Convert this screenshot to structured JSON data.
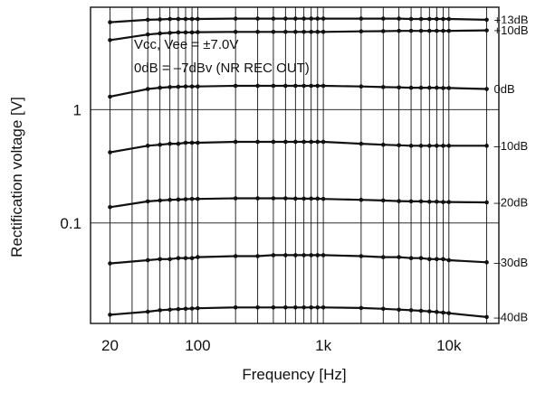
{
  "chart_data": {
    "type": "line",
    "xlabel": "Frequency [Hz]",
    "ylabel": "Rectification voltage [V]",
    "xscale": "log",
    "yscale": "log",
    "xlim": [
      14,
      25000
    ],
    "ylim": [
      0.013,
      8
    ],
    "grid": true,
    "x_ticks": [
      {
        "value": 20,
        "label": "20"
      },
      {
        "value": 100,
        "label": "100"
      },
      {
        "value": 1000,
        "label": "1k"
      },
      {
        "value": 10000,
        "label": "10k"
      }
    ],
    "y_ticks": [
      {
        "value": 1,
        "label": "1"
      },
      {
        "value": 0.1,
        "label": "0.1"
      }
    ],
    "annotations": [
      "Vcc, Vee = ±7.0V",
      "0dB = –7dBv (NR REC OUT)"
    ],
    "x": [
      20,
      40,
      50,
      60,
      70,
      80,
      90,
      100,
      200,
      300,
      400,
      500,
      600,
      700,
      800,
      900,
      1000,
      2000,
      3000,
      4000,
      5000,
      6000,
      7000,
      8000,
      9000,
      10000,
      20000
    ],
    "series": [
      {
        "name": "+13dB",
        "values": [
          5.9,
          6.2,
          6.25,
          6.3,
          6.3,
          6.3,
          6.3,
          6.3,
          6.35,
          6.35,
          6.35,
          6.35,
          6.35,
          6.35,
          6.35,
          6.35,
          6.35,
          6.35,
          6.35,
          6.35,
          6.3,
          6.3,
          6.3,
          6.3,
          6.3,
          6.3,
          6.2
        ]
      },
      {
        "name": "+10dB",
        "values": [
          4.1,
          4.6,
          4.7,
          4.75,
          4.8,
          4.8,
          4.8,
          4.82,
          4.85,
          4.85,
          4.85,
          4.85,
          4.85,
          4.85,
          4.85,
          4.85,
          4.85,
          4.9,
          4.92,
          4.95,
          4.95,
          4.95,
          4.95,
          4.95,
          4.95,
          4.95,
          5.0
        ]
      },
      {
        "name": "0dB",
        "values": [
          1.3,
          1.52,
          1.56,
          1.58,
          1.59,
          1.6,
          1.6,
          1.6,
          1.62,
          1.62,
          1.62,
          1.62,
          1.62,
          1.62,
          1.62,
          1.62,
          1.62,
          1.6,
          1.58,
          1.57,
          1.56,
          1.56,
          1.56,
          1.56,
          1.55,
          1.55,
          1.52
        ]
      },
      {
        "name": "–10dB",
        "values": [
          0.42,
          0.48,
          0.49,
          0.5,
          0.5,
          0.51,
          0.51,
          0.51,
          0.52,
          0.52,
          0.52,
          0.52,
          0.52,
          0.52,
          0.52,
          0.52,
          0.52,
          0.5,
          0.49,
          0.485,
          0.48,
          0.48,
          0.48,
          0.48,
          0.48,
          0.48,
          0.48
        ]
      },
      {
        "name": "–20dB",
        "values": [
          0.138,
          0.155,
          0.158,
          0.16,
          0.161,
          0.162,
          0.163,
          0.163,
          0.165,
          0.165,
          0.165,
          0.165,
          0.164,
          0.164,
          0.164,
          0.164,
          0.163,
          0.16,
          0.158,
          0.156,
          0.155,
          0.155,
          0.154,
          0.154,
          0.153,
          0.153,
          0.152
        ]
      },
      {
        "name": "–30dB",
        "values": [
          0.044,
          0.047,
          0.048,
          0.048,
          0.049,
          0.049,
          0.049,
          0.05,
          0.051,
          0.051,
          0.052,
          0.052,
          0.052,
          0.052,
          0.052,
          0.052,
          0.052,
          0.051,
          0.05,
          0.05,
          0.049,
          0.049,
          0.048,
          0.048,
          0.048,
          0.047,
          0.045
        ]
      },
      {
        "name": "–40dB",
        "values": [
          0.0155,
          0.0165,
          0.017,
          0.0172,
          0.0174,
          0.0175,
          0.0176,
          0.0177,
          0.018,
          0.018,
          0.018,
          0.018,
          0.018,
          0.018,
          0.018,
          0.018,
          0.018,
          0.0178,
          0.0175,
          0.0172,
          0.017,
          0.0168,
          0.0166,
          0.0164,
          0.0162,
          0.016,
          0.0148
        ]
      }
    ]
  }
}
